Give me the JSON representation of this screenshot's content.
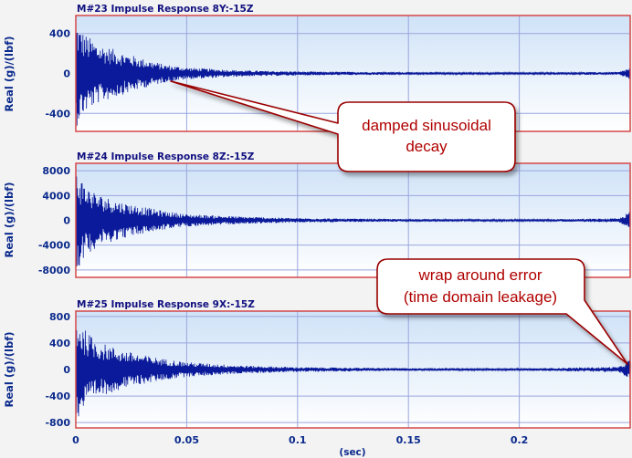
{
  "colors": {
    "background": "#f3f3f3",
    "plot_bg_top": "#cfe2f7",
    "plot_bg_bottom": "#ffffff",
    "frame": "#d44848",
    "grid": "#9aa6de",
    "trace": "#0a1a9a",
    "label": "#0b2a8c",
    "callout_text": "#b00000",
    "callout_border": "#9a0000",
    "callout_fill": "#ffffff"
  },
  "x_axis": {
    "label": "(sec)",
    "range": [
      0,
      0.25
    ],
    "ticks": [
      0,
      0.05,
      0.1,
      0.15,
      0.2
    ],
    "tick_labels": [
      "0",
      "0.05",
      "0.1",
      "0.15",
      "0.2"
    ]
  },
  "chart_data": [
    {
      "type": "line",
      "title": "M#23 Impulse Response 8Y:-15Z",
      "ylabel": "Real (g)/(lbf)",
      "ylim": [
        -580,
        580
      ],
      "y_ticks": [
        400,
        0,
        -400
      ],
      "y_tick_labels": [
        "400",
        "0",
        "-400"
      ],
      "x": [
        0,
        0.002,
        0.005,
        0.01,
        0.02,
        0.03,
        0.04,
        0.05,
        0.075,
        0.1,
        0.15,
        0.2,
        0.245,
        0.25
      ],
      "envelope": [
        550,
        450,
        380,
        300,
        220,
        150,
        90,
        60,
        30,
        20,
        12,
        10,
        15,
        60
      ]
    },
    {
      "type": "line",
      "title": "M#24 Impulse Response 8Z:-15Z",
      "ylabel": "Real (g)/(lbf)",
      "ylim": [
        -9200,
        9200
      ],
      "y_ticks": [
        8000,
        4000,
        0,
        -4000,
        -8000
      ],
      "y_tick_labels": [
        "8000",
        "4000",
        "0",
        "-4000",
        "-8000"
      ],
      "x": [
        0,
        0.002,
        0.005,
        0.01,
        0.02,
        0.03,
        0.04,
        0.05,
        0.075,
        0.1,
        0.15,
        0.2,
        0.245,
        0.25
      ],
      "envelope": [
        8800,
        7000,
        5500,
        4200,
        3000,
        2200,
        1500,
        1000,
        600,
        350,
        200,
        150,
        300,
        1500
      ]
    },
    {
      "type": "line",
      "title": "M#25 Impulse Response 9X:-15Z",
      "ylabel": "Real (g)/(lbf)",
      "ylim": [
        -880,
        880
      ],
      "y_ticks": [
        800,
        400,
        0,
        -400,
        -800
      ],
      "y_tick_labels": [
        "800",
        "400",
        "0",
        "-400",
        "-800"
      ],
      "x": [
        0,
        0.002,
        0.005,
        0.01,
        0.02,
        0.03,
        0.04,
        0.05,
        0.075,
        0.1,
        0.15,
        0.2,
        0.245,
        0.25
      ],
      "envelope": [
        850,
        700,
        560,
        420,
        300,
        220,
        160,
        110,
        60,
        35,
        20,
        15,
        40,
        160
      ]
    }
  ],
  "callouts": [
    {
      "lines": [
        "damped sinusoidal",
        "decay"
      ]
    },
    {
      "lines": [
        "wrap around error",
        "(time domain leakage)"
      ]
    }
  ]
}
